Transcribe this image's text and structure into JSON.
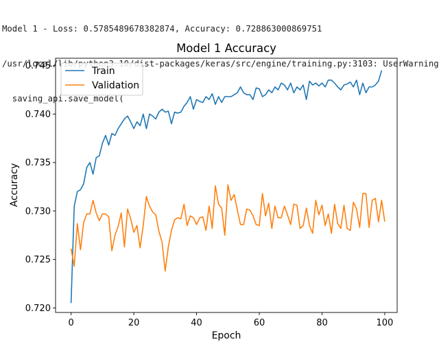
{
  "console": {
    "lines": [
      "Model 1 - Loss: 0.5785489678382874, Accuracy: 0.728863000869751",
      "/usr/local/lib/python3.10/dist-packages/keras/src/engine/training.py:3103: UserWarning",
      "  saving_api.save_model("
    ]
  },
  "chart_data": {
    "type": "line",
    "title": "Model 1 Accuracy",
    "xlabel": "Epoch",
    "ylabel": "Accuracy",
    "xlim": [
      -4.95,
      103.95
    ],
    "ylim": [
      0.71953,
      0.74576
    ],
    "xticks": [
      0,
      20,
      40,
      60,
      80,
      100
    ],
    "yticks": [
      0.72,
      0.725,
      0.73,
      0.735,
      0.74,
      0.745
    ],
    "ytick_labels": [
      "0.720",
      "0.725",
      "0.730",
      "0.735",
      "0.740",
      "0.745"
    ],
    "legend_position": "upper-left",
    "grid": false,
    "series": [
      {
        "name": "Train",
        "color": "#1f77b4",
        "values": [
          0.7205,
          0.7305,
          0.732,
          0.7322,
          0.7328,
          0.7345,
          0.735,
          0.7338,
          0.7355,
          0.7357,
          0.737,
          0.7378,
          0.7368,
          0.738,
          0.7378,
          0.7385,
          0.739,
          0.7395,
          0.7398,
          0.7392,
          0.7385,
          0.7392,
          0.7388,
          0.74,
          0.7385,
          0.74,
          0.7398,
          0.7395,
          0.7402,
          0.7405,
          0.7402,
          0.7403,
          0.739,
          0.7402,
          0.7401,
          0.7402,
          0.7408,
          0.7412,
          0.7418,
          0.7405,
          0.7415,
          0.7413,
          0.7412,
          0.7418,
          0.7415,
          0.7421,
          0.741,
          0.7418,
          0.7412,
          0.7418,
          0.7418,
          0.7418,
          0.742,
          0.7422,
          0.7428,
          0.7422,
          0.742,
          0.742,
          0.7415,
          0.7427,
          0.7426,
          0.7418,
          0.742,
          0.7425,
          0.7422,
          0.7428,
          0.7425,
          0.7432,
          0.743,
          0.7425,
          0.7432,
          0.7422,
          0.7428,
          0.7425,
          0.743,
          0.7415,
          0.7434,
          0.743,
          0.7432,
          0.7429,
          0.7432,
          0.7428,
          0.7435,
          0.7435,
          0.7432,
          0.7428,
          0.7425,
          0.743,
          0.7431,
          0.7433,
          0.7428,
          0.7435,
          0.742,
          0.7432,
          0.7422,
          0.7428,
          0.7428,
          0.743,
          0.7434,
          0.7445
        ]
      },
      {
        "name": "Validation",
        "color": "#ff7f0e",
        "values": [
          0.7261,
          0.7243,
          0.7287,
          0.726,
          0.7288,
          0.7297,
          0.7297,
          0.7311,
          0.7298,
          0.729,
          0.7297,
          0.7297,
          0.7294,
          0.7259,
          0.7275,
          0.7284,
          0.7298,
          0.7263,
          0.7302,
          0.7292,
          0.7278,
          0.7285,
          0.7262,
          0.7285,
          0.7315,
          0.7305,
          0.7299,
          0.7296,
          0.7279,
          0.7268,
          0.7238,
          0.7263,
          0.728,
          0.7291,
          0.7293,
          0.7292,
          0.7307,
          0.7285,
          0.7295,
          0.7293,
          0.7286,
          0.7293,
          0.7294,
          0.728,
          0.7305,
          0.7282,
          0.7326,
          0.7307,
          0.7303,
          0.7275,
          0.7327,
          0.7311,
          0.7317,
          0.7301,
          0.7286,
          0.7286,
          0.7302,
          0.7301,
          0.7295,
          0.7286,
          0.7285,
          0.7318,
          0.7295,
          0.7308,
          0.7282,
          0.7305,
          0.7293,
          0.7293,
          0.7305,
          0.7296,
          0.7286,
          0.7307,
          0.7306,
          0.7282,
          0.7285,
          0.7303,
          0.7285,
          0.7277,
          0.7311,
          0.7296,
          0.7306,
          0.7285,
          0.7297,
          0.7277,
          0.7307,
          0.7287,
          0.7282,
          0.7306,
          0.7282,
          0.728,
          0.7309,
          0.7302,
          0.7283,
          0.7318,
          0.7318,
          0.7283,
          0.7311,
          0.7313,
          0.7289,
          0.7311,
          0.7289
        ]
      }
    ]
  }
}
